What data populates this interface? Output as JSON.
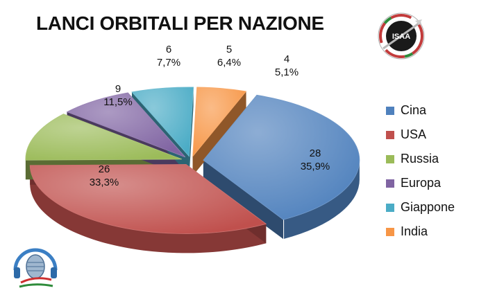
{
  "title": "LANCI ORBITALI PER NAZIONE",
  "logos": {
    "isaa_text": "ISAA"
  },
  "chart_data": {
    "type": "pie",
    "title": "LANCI ORBITALI PER NAZIONE",
    "style": "3d-exploded",
    "legend_position": "right",
    "slices": [
      {
        "label": "Cina",
        "value": 28,
        "percent": "35,9%",
        "color": "#4f81bd"
      },
      {
        "label": "USA",
        "value": 26,
        "percent": "33,3%",
        "color": "#c0504d"
      },
      {
        "label": "Russia",
        "value": 9,
        "percent": "11,5%",
        "color": "#9bbb59"
      },
      {
        "label": "Europa",
        "value": 6,
        "percent": "7,7%",
        "color": "#8064a2"
      },
      {
        "label": "Giappone",
        "value": 5,
        "percent": "6,4%",
        "color": "#4bacc6"
      },
      {
        "label": "India",
        "value": 4,
        "percent": "5,1%",
        "color": "#f79646"
      }
    ]
  }
}
